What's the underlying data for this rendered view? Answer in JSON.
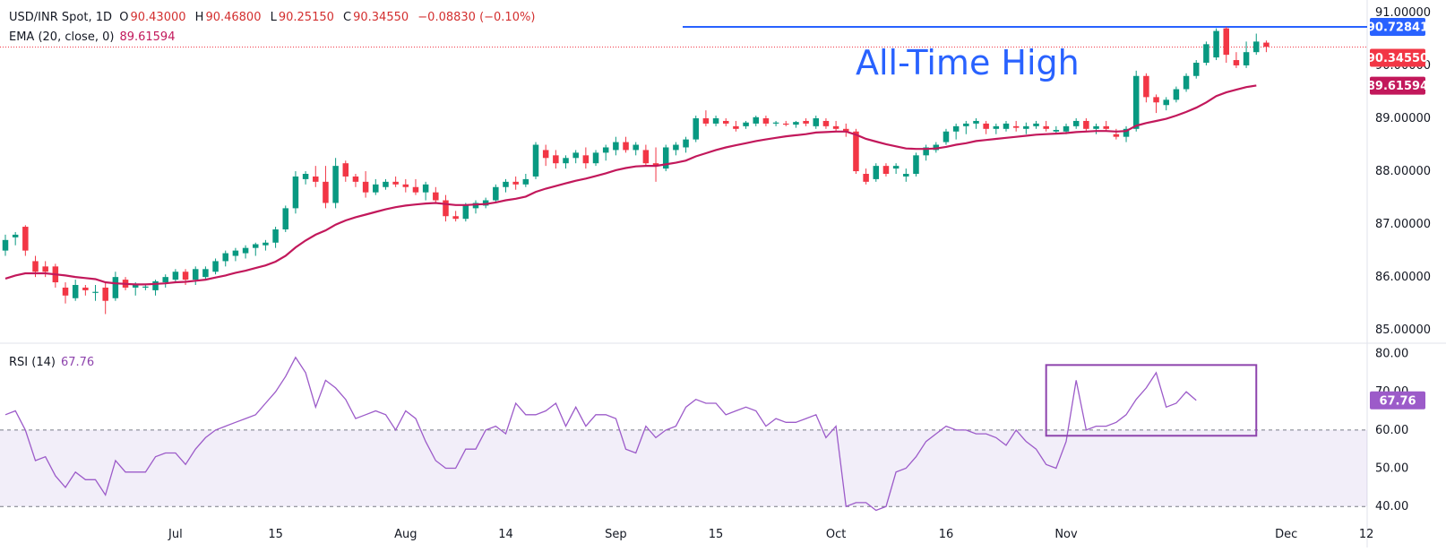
{
  "chart_data": [
    {
      "type": "candlestick",
      "symbol": "USD/INR Spot",
      "timeframe": "1D",
      "ohlc_legend": {
        "open_label": "O",
        "open": "90.43000",
        "high_label": "H",
        "high": "90.46800",
        "low_label": "L",
        "low": "90.25150",
        "close_label": "C",
        "close": "90.34550",
        "change": "−0.08830 (−0.10%)"
      },
      "ema_legend": {
        "label": "EMA (20, close, 0)",
        "value": "89.61594"
      },
      "annotation": "All-Time High",
      "ylim": [
        84.8,
        91.1
      ],
      "yticks": [
        "91.00000",
        "90.00000",
        "89.00000",
        "88.00000",
        "87.00000",
        "86.00000",
        "85.00000"
      ],
      "xticks": [
        {
          "label": "Jul",
          "index": 17
        },
        {
          "label": "15",
          "index": 27
        },
        {
          "label": "Aug",
          "index": 40
        },
        {
          "label": "14",
          "index": 50
        },
        {
          "label": "Sep",
          "index": 61
        },
        {
          "label": "15",
          "index": 71
        },
        {
          "label": "Oct",
          "index": 83
        },
        {
          "label": "16",
          "index": 94
        },
        {
          "label": "Nov",
          "index": 106
        },
        {
          "label": "Dec",
          "index": 128
        },
        {
          "label": "12",
          "index": 136
        }
      ],
      "price_labels": {
        "ath": "90.72841",
        "last": "90.34550",
        "ema": "89.61594"
      },
      "ath_level": 90.72841,
      "last_close": 90.3455,
      "ema_last": 89.61594,
      "colors": {
        "up": "#089981",
        "down": "#f23645",
        "ema": "#c2185b",
        "ath": "#2962ff",
        "rsi": "#9c5bc9",
        "last": "#f23645"
      },
      "candles": [
        [
          86.5,
          86.8,
          86.4,
          86.7
        ],
        [
          86.75,
          86.85,
          86.6,
          86.8
        ],
        [
          86.95,
          86.98,
          86.4,
          86.5
        ],
        [
          86.3,
          86.4,
          86.0,
          86.1
        ],
        [
          86.2,
          86.3,
          86.0,
          86.1
        ],
        [
          86.2,
          86.25,
          85.8,
          85.9
        ],
        [
          85.8,
          85.9,
          85.5,
          85.65
        ],
        [
          85.6,
          85.95,
          85.55,
          85.85
        ],
        [
          85.8,
          85.85,
          85.65,
          85.75
        ],
        [
          85.7,
          85.85,
          85.55,
          85.72
        ],
        [
          85.8,
          85.9,
          85.3,
          85.55
        ],
        [
          85.6,
          86.1,
          85.55,
          86.0
        ],
        [
          85.95,
          86.0,
          85.75,
          85.8
        ],
        [
          85.8,
          85.9,
          85.65,
          85.85
        ],
        [
          85.8,
          85.85,
          85.75,
          85.82
        ],
        [
          85.75,
          85.95,
          85.65,
          85.92
        ],
        [
          85.9,
          86.05,
          85.8,
          86.0
        ],
        [
          85.95,
          86.15,
          85.9,
          86.1
        ],
        [
          86.1,
          86.15,
          85.85,
          85.95
        ],
        [
          85.95,
          86.2,
          85.85,
          86.15
        ],
        [
          86.0,
          86.2,
          85.95,
          86.15
        ],
        [
          86.1,
          86.35,
          86.05,
          86.3
        ],
        [
          86.3,
          86.5,
          86.2,
          86.45
        ],
        [
          86.4,
          86.55,
          86.3,
          86.5
        ],
        [
          86.45,
          86.6,
          86.35,
          86.55
        ],
        [
          86.55,
          86.65,
          86.4,
          86.62
        ],
        [
          86.6,
          86.7,
          86.5,
          86.65
        ],
        [
          86.65,
          86.95,
          86.55,
          86.9
        ],
        [
          86.9,
          87.35,
          86.85,
          87.3
        ],
        [
          87.3,
          88.0,
          87.2,
          87.9
        ],
        [
          87.85,
          88.0,
          87.75,
          87.95
        ],
        [
          87.9,
          88.1,
          87.7,
          87.8
        ],
        [
          87.8,
          88.1,
          87.3,
          87.4
        ],
        [
          87.4,
          88.25,
          87.3,
          88.1
        ],
        [
          88.15,
          88.2,
          87.8,
          87.9
        ],
        [
          87.9,
          87.95,
          87.7,
          87.8
        ],
        [
          87.8,
          88.0,
          87.5,
          87.6
        ],
        [
          87.6,
          87.85,
          87.55,
          87.75
        ],
        [
          87.7,
          87.85,
          87.65,
          87.8
        ],
        [
          87.8,
          87.9,
          87.7,
          87.75
        ],
        [
          87.75,
          87.85,
          87.6,
          87.7
        ],
        [
          87.7,
          87.85,
          87.55,
          87.6
        ],
        [
          87.6,
          87.8,
          87.45,
          87.75
        ],
        [
          87.6,
          87.7,
          87.4,
          87.45
        ],
        [
          87.45,
          87.55,
          87.05,
          87.15
        ],
        [
          87.15,
          87.25,
          87.05,
          87.1
        ],
        [
          87.1,
          87.4,
          87.05,
          87.35
        ],
        [
          87.3,
          87.45,
          87.2,
          87.4
        ],
        [
          87.35,
          87.5,
          87.3,
          87.45
        ],
        [
          87.45,
          87.75,
          87.4,
          87.7
        ],
        [
          87.7,
          87.85,
          87.6,
          87.8
        ],
        [
          87.8,
          87.9,
          87.65,
          87.75
        ],
        [
          87.75,
          87.95,
          87.7,
          87.85
        ],
        [
          87.9,
          88.55,
          87.85,
          88.5
        ],
        [
          88.4,
          88.5,
          88.1,
          88.25
        ],
        [
          88.3,
          88.4,
          88.05,
          88.15
        ],
        [
          88.15,
          88.3,
          88.05,
          88.25
        ],
        [
          88.25,
          88.4,
          88.15,
          88.35
        ],
        [
          88.3,
          88.45,
          88.05,
          88.15
        ],
        [
          88.15,
          88.4,
          88.1,
          88.35
        ],
        [
          88.35,
          88.5,
          88.2,
          88.45
        ],
        [
          88.4,
          88.65,
          88.3,
          88.55
        ],
        [
          88.55,
          88.65,
          88.35,
          88.4
        ],
        [
          88.4,
          88.55,
          88.3,
          88.5
        ],
        [
          88.4,
          88.5,
          88.1,
          88.15
        ],
        [
          88.15,
          88.45,
          87.8,
          88.1
        ],
        [
          88.05,
          88.5,
          88.0,
          88.45
        ],
        [
          88.4,
          88.55,
          88.3,
          88.5
        ],
        [
          88.45,
          88.65,
          88.35,
          88.6
        ],
        [
          88.6,
          89.05,
          88.55,
          89.0
        ],
        [
          89.0,
          89.15,
          88.85,
          88.9
        ],
        [
          88.9,
          89.05,
          88.85,
          89.0
        ],
        [
          88.95,
          89.0,
          88.85,
          88.9
        ],
        [
          88.85,
          88.95,
          88.75,
          88.8
        ],
        [
          88.85,
          88.95,
          88.8,
          88.92
        ],
        [
          88.9,
          89.05,
          88.85,
          89.02
        ],
        [
          89.0,
          89.05,
          88.85,
          88.9
        ],
        [
          88.9,
          88.95,
          88.85,
          88.92
        ],
        [
          88.9,
          88.95,
          88.85,
          88.88
        ],
        [
          88.88,
          88.95,
          88.82,
          88.93
        ],
        [
          88.95,
          89.0,
          88.85,
          88.9
        ],
        [
          88.85,
          89.05,
          88.8,
          89.0
        ],
        [
          88.95,
          89.0,
          88.8,
          88.85
        ],
        [
          88.85,
          88.95,
          88.75,
          88.8
        ],
        [
          88.8,
          88.9,
          88.65,
          88.75
        ],
        [
          88.75,
          88.8,
          87.95,
          88.0
        ],
        [
          87.95,
          88.05,
          87.75,
          87.8
        ],
        [
          87.85,
          88.15,
          87.8,
          88.1
        ],
        [
          88.1,
          88.15,
          87.9,
          87.95
        ],
        [
          88.05,
          88.15,
          87.95,
          88.1
        ],
        [
          87.9,
          88.05,
          87.8,
          87.95
        ],
        [
          87.95,
          88.35,
          87.9,
          88.3
        ],
        [
          88.3,
          88.5,
          88.2,
          88.45
        ],
        [
          88.4,
          88.55,
          88.35,
          88.5
        ],
        [
          88.55,
          88.8,
          88.5,
          88.75
        ],
        [
          88.75,
          88.9,
          88.6,
          88.85
        ],
        [
          88.85,
          88.95,
          88.7,
          88.9
        ],
        [
          88.9,
          89.0,
          88.8,
          88.95
        ],
        [
          88.9,
          88.95,
          88.7,
          88.8
        ],
        [
          88.8,
          88.9,
          88.7,
          88.85
        ],
        [
          88.8,
          88.95,
          88.75,
          88.9
        ],
        [
          88.85,
          88.95,
          88.75,
          88.82
        ],
        [
          88.8,
          88.92,
          88.7,
          88.85
        ],
        [
          88.85,
          88.95,
          88.8,
          88.9
        ],
        [
          88.85,
          88.95,
          88.75,
          88.8
        ],
        [
          88.75,
          88.85,
          88.7,
          88.78
        ],
        [
          88.75,
          88.9,
          88.7,
          88.85
        ],
        [
          88.85,
          89.0,
          88.8,
          88.95
        ],
        [
          88.95,
          89.0,
          88.75,
          88.8
        ],
        [
          88.8,
          88.9,
          88.7,
          88.85
        ],
        [
          88.85,
          88.95,
          88.75,
          88.8
        ],
        [
          88.7,
          88.8,
          88.6,
          88.65
        ],
        [
          88.65,
          88.85,
          88.55,
          88.8
        ],
        [
          88.8,
          89.9,
          88.75,
          89.8
        ],
        [
          89.8,
          89.85,
          89.3,
          89.4
        ],
        [
          89.4,
          89.45,
          89.1,
          89.3
        ],
        [
          89.25,
          89.4,
          89.15,
          89.35
        ],
        [
          89.35,
          89.6,
          89.3,
          89.55
        ],
        [
          89.55,
          89.85,
          89.5,
          89.8
        ],
        [
          89.8,
          90.1,
          89.75,
          90.05
        ],
        [
          90.05,
          90.45,
          90.0,
          90.4
        ],
        [
          90.15,
          90.7,
          90.1,
          90.65
        ],
        [
          90.7,
          90.73,
          90.05,
          90.2
        ],
        [
          90.1,
          90.25,
          89.95,
          90.0
        ],
        [
          90.0,
          90.45,
          89.95,
          90.25
        ],
        [
          90.25,
          90.6,
          90.2,
          90.45
        ],
        [
          90.43,
          90.47,
          90.25,
          90.35
        ]
      ],
      "ema": [
        85.97,
        86.03,
        86.07,
        86.07,
        86.07,
        86.05,
        86.03,
        86.0,
        85.98,
        85.96,
        85.9,
        85.88,
        85.87,
        85.86,
        85.86,
        85.87,
        85.88,
        85.9,
        85.91,
        85.93,
        85.95,
        85.99,
        86.03,
        86.08,
        86.12,
        86.17,
        86.22,
        86.29,
        86.4,
        86.56,
        86.69,
        86.8,
        86.88,
        86.99,
        87.07,
        87.13,
        87.18,
        87.23,
        87.28,
        87.32,
        87.35,
        87.37,
        87.39,
        87.4,
        87.38,
        87.36,
        87.36,
        87.37,
        87.38,
        87.41,
        87.45,
        87.48,
        87.52,
        87.61,
        87.67,
        87.72,
        87.77,
        87.82,
        87.86,
        87.91,
        87.96,
        88.02,
        88.06,
        88.09,
        88.1,
        88.1,
        88.13,
        88.16,
        88.2,
        88.28,
        88.34,
        88.4,
        88.45,
        88.49,
        88.53,
        88.57,
        88.6,
        88.63,
        88.66,
        88.68,
        88.7,
        88.73,
        88.74,
        88.75,
        88.75,
        88.69,
        88.61,
        88.56,
        88.51,
        88.47,
        88.43,
        88.42,
        88.42,
        88.43,
        88.46,
        88.5,
        88.53,
        88.57,
        88.59,
        88.61,
        88.63,
        88.65,
        88.67,
        88.69,
        88.7,
        88.71,
        88.72,
        88.74,
        88.75,
        88.76,
        88.76,
        88.75,
        88.76,
        88.86,
        88.91,
        88.95,
        88.99,
        89.05,
        89.12,
        89.2,
        89.3,
        89.42,
        89.49,
        89.54,
        89.59,
        89.62
      ]
    },
    {
      "type": "line",
      "title": "RSI (14)",
      "last_value": "67.76",
      "ylim": [
        37,
        82
      ],
      "yticks": [
        "80.00",
        "70.00",
        "60.00",
        "50.00",
        "40.00"
      ],
      "upper_band": 60,
      "lower_band": 40,
      "values": [
        64,
        65,
        60,
        52,
        53,
        48,
        45,
        49,
        47,
        47,
        43,
        52,
        49,
        49,
        49,
        53,
        54,
        54,
        51,
        55,
        58,
        60,
        61,
        62,
        63,
        64,
        67,
        70,
        74,
        79,
        75,
        66,
        73,
        71,
        68,
        63,
        64,
        65,
        64,
        60,
        65,
        63,
        57,
        52,
        50,
        50,
        55,
        55,
        60,
        61,
        59,
        67,
        64,
        64,
        65,
        67,
        61,
        66,
        61,
        64,
        64,
        63,
        55,
        54,
        61,
        58,
        60,
        61,
        66,
        68,
        67,
        67,
        64,
        65,
        66,
        65,
        61,
        63,
        62,
        62,
        63,
        64,
        58,
        61,
        40,
        41,
        41,
        39,
        40,
        49,
        50,
        53,
        57,
        59,
        61,
        60,
        60,
        59,
        59,
        58,
        56,
        60,
        57,
        55,
        51,
        50,
        57,
        73,
        60,
        61,
        61,
        62,
        64,
        68,
        71,
        75,
        66,
        67,
        70,
        67.76
      ],
      "highlight_box": {
        "start_index": 104,
        "end_index": 125,
        "y_top": 77,
        "y_bottom": 58.5
      }
    }
  ]
}
